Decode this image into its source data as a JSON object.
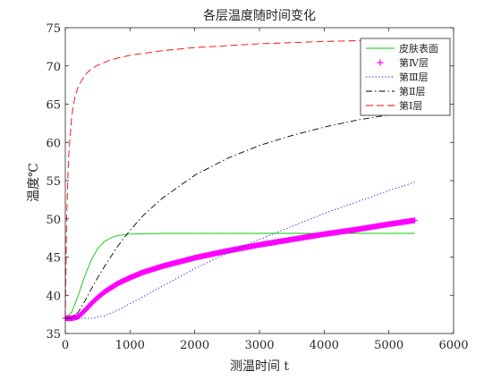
{
  "chart_data": {
    "type": "line",
    "title": "各层温度随时间变化",
    "xlabel": "测温时间 t",
    "ylabel": "温度℃",
    "xlim": [
      0,
      6000
    ],
    "ylim": [
      35,
      75
    ],
    "xticks": [
      0,
      1000,
      2000,
      3000,
      4000,
      5000,
      6000
    ],
    "yticks": [
      35,
      40,
      45,
      50,
      55,
      60,
      65,
      70,
      75
    ],
    "grid": false,
    "legend_position": "top-right",
    "series": [
      {
        "name": "皮肤表面",
        "color": "#00cc00",
        "line_style": "solid",
        "marker": "none",
        "x": [
          0,
          100,
          200,
          300,
          400,
          500,
          600,
          700,
          800,
          900,
          1000,
          1200,
          1500,
          2000,
          3000,
          4000,
          5000,
          5400
        ],
        "y": [
          37.0,
          37.8,
          40.0,
          42.5,
          44.6,
          46.1,
          47.0,
          47.5,
          47.8,
          47.9,
          48.0,
          48.05,
          48.1,
          48.1,
          48.1,
          48.1,
          48.1,
          48.1
        ]
      },
      {
        "name": "第Ⅳ层",
        "color": "#ff00ff",
        "line_style": "solid",
        "marker": "+",
        "x": [
          0,
          100,
          200,
          300,
          400,
          500,
          600,
          800,
          1000,
          1200,
          1500,
          2000,
          2500,
          3000,
          3500,
          4000,
          4500,
          5000,
          5400
        ],
        "y": [
          37.0,
          37.0,
          37.2,
          38.0,
          38.9,
          39.7,
          40.4,
          41.5,
          42.3,
          43.0,
          43.8,
          44.9,
          45.8,
          46.6,
          47.3,
          48.0,
          48.6,
          49.3,
          49.8
        ]
      },
      {
        "name": "第Ⅲ层",
        "color": "#0000ff",
        "line_style": "dotted",
        "marker": "none",
        "x": [
          0,
          200,
          400,
          600,
          800,
          1000,
          1200,
          1500,
          2000,
          2500,
          3000,
          3500,
          4000,
          4500,
          5000,
          5400
        ],
        "y": [
          37.0,
          37.0,
          37.0,
          37.3,
          38.0,
          38.9,
          39.8,
          41.2,
          43.5,
          45.5,
          47.3,
          49.0,
          50.7,
          52.2,
          53.7,
          54.8
        ]
      },
      {
        "name": "第Ⅱ层",
        "color": "#000000",
        "line_style": "dashdot",
        "marker": "none",
        "x": [
          0,
          100,
          200,
          300,
          400,
          500,
          600,
          800,
          1000,
          1200,
          1500,
          2000,
          2500,
          3000,
          3500,
          4000,
          4500,
          5000,
          5400
        ],
        "y": [
          37.0,
          37.0,
          37.8,
          39.2,
          40.8,
          42.3,
          43.7,
          46.3,
          48.5,
          50.4,
          52.7,
          55.7,
          57.9,
          59.6,
          60.9,
          62.0,
          62.9,
          63.6,
          64.2
        ]
      },
      {
        "name": "第Ⅰ层",
        "color": "#ff0000",
        "line_style": "dashed",
        "marker": "none",
        "x": [
          0,
          20,
          50,
          100,
          150,
          200,
          300,
          400,
          500,
          700,
          1000,
          1500,
          2000,
          3000,
          4000,
          5000,
          5400
        ],
        "y": [
          37.0,
          50.0,
          58.0,
          63.5,
          66.0,
          67.3,
          68.8,
          69.6,
          70.1,
          70.8,
          71.4,
          72.0,
          72.4,
          72.9,
          73.2,
          73.4,
          73.5
        ]
      }
    ]
  }
}
